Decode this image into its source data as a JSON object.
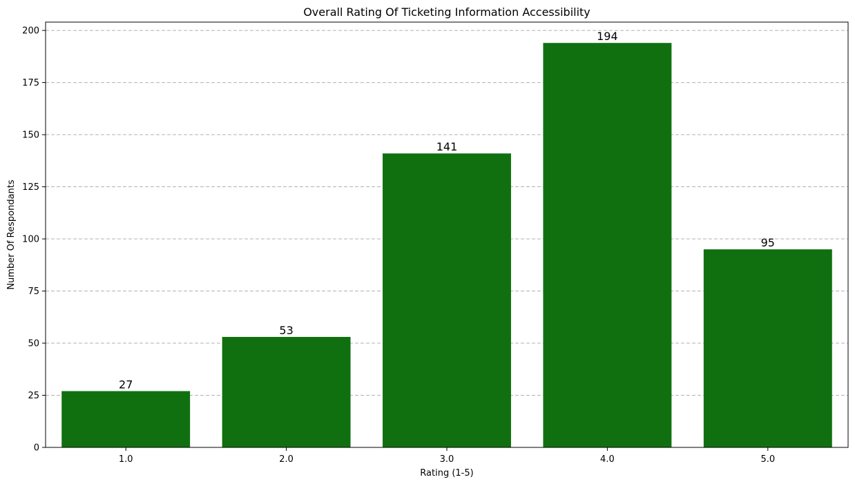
{
  "chart_data": {
    "type": "bar",
    "title": "Overall Rating Of Ticketing Information Accessibility",
    "xlabel": "Rating (1-5)",
    "ylabel": "Number Of Respondants",
    "categories": [
      "1.0",
      "2.0",
      "3.0",
      "4.0",
      "5.0"
    ],
    "values": [
      27,
      53,
      141,
      194,
      95
    ],
    "ylim": [
      0,
      204
    ],
    "yticks": [
      0,
      25,
      50,
      75,
      100,
      125,
      150,
      175,
      200
    ],
    "grid": "y-dashed",
    "bar_color": "#107010",
    "grid_color": "#b0b0b0"
  }
}
